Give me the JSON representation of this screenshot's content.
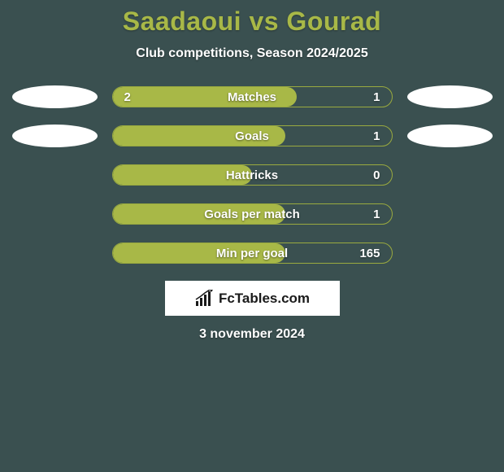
{
  "title": "Saadaoui vs Gourad",
  "subtitle": "Club competitions, Season 2024/2025",
  "background_color": "#3a5050",
  "accent_color": "#a8b847",
  "bar_border_color": "#9aaa3f",
  "text_color": "#ffffff",
  "ellipse_color": "#ffffff",
  "bars": [
    {
      "left_value": "2",
      "label": "Matches",
      "right_value": "1",
      "fill_pct": 66,
      "show_left_ellipse": true,
      "show_right_ellipse": true
    },
    {
      "left_value": "",
      "label": "Goals",
      "right_value": "1",
      "fill_pct": 62,
      "show_left_ellipse": true,
      "show_right_ellipse": true
    },
    {
      "left_value": "",
      "label": "Hattricks",
      "right_value": "0",
      "fill_pct": 50,
      "show_left_ellipse": false,
      "show_right_ellipse": false
    },
    {
      "left_value": "",
      "label": "Goals per match",
      "right_value": "1",
      "fill_pct": 62,
      "show_left_ellipse": false,
      "show_right_ellipse": false
    },
    {
      "left_value": "",
      "label": "Min per goal",
      "right_value": "165",
      "fill_pct": 62,
      "show_left_ellipse": false,
      "show_right_ellipse": false
    }
  ],
  "logo": {
    "brand": "FcTables.com",
    "icon_color": "#1a1a1a",
    "background": "#ffffff"
  },
  "date": "3 november 2024"
}
